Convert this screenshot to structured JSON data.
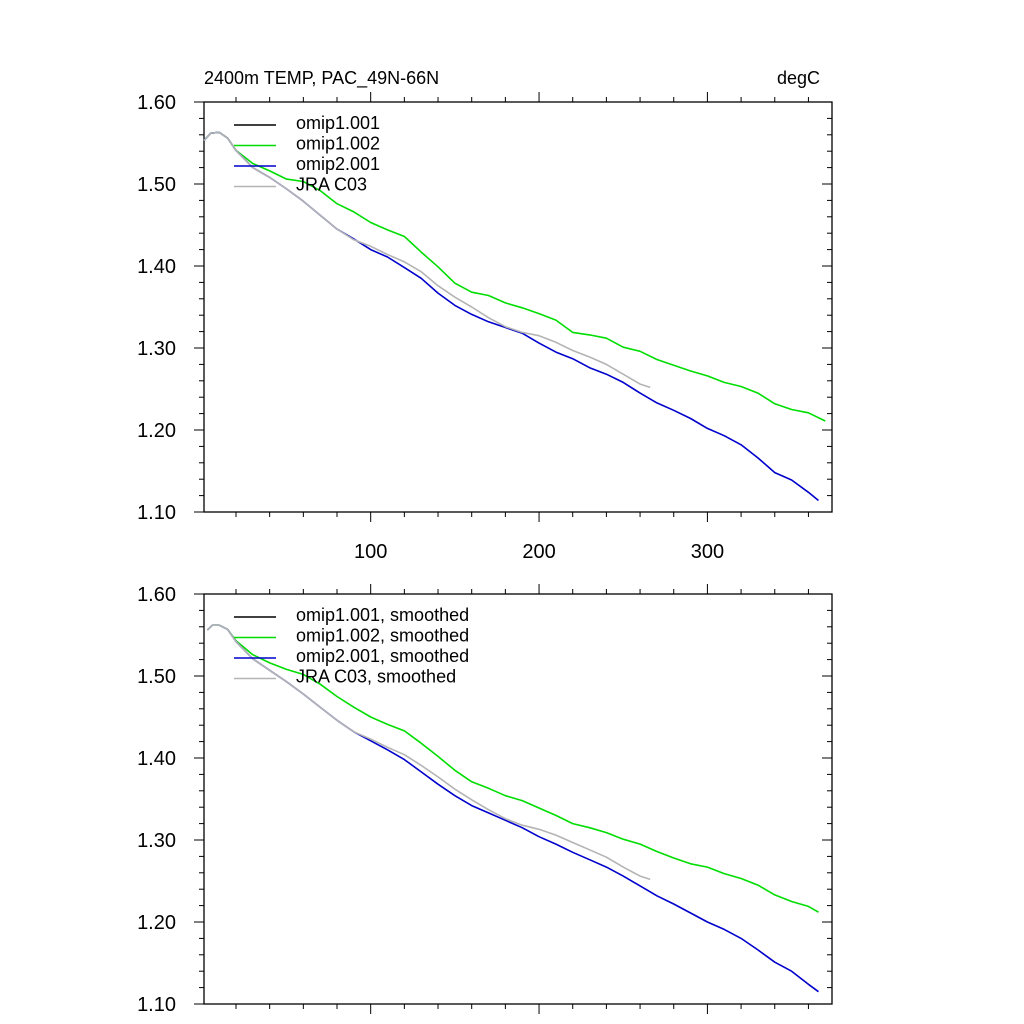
{
  "chart_data": [
    {
      "type": "line",
      "title": "2400m TEMP, PAC_49N-66N",
      "units": "degC",
      "xlim": [
        1,
        374
      ],
      "ylim": [
        1.1,
        1.6
      ],
      "xticks": [
        100,
        200,
        300
      ],
      "xtick_labels": [
        "100",
        "200",
        "300"
      ],
      "yticks": [
        1.1,
        1.2,
        1.3,
        1.4,
        1.5,
        1.6
      ],
      "ytick_labels": [
        "1.10",
        "1.20",
        "1.30",
        "1.40",
        "1.50",
        "1.60"
      ],
      "legend": "top-left",
      "series": [
        {
          "name": "omip1.001",
          "color": "#000000",
          "points": []
        },
        {
          "name": "omip1.002",
          "color": "#00dd00",
          "points": [
            [
              1,
              1.553
            ],
            [
              5,
              1.562
            ],
            [
              10,
              1.563
            ],
            [
              15,
              1.556
            ],
            [
              20,
              1.541
            ],
            [
              30,
              1.525
            ],
            [
              40,
              1.516
            ],
            [
              50,
              1.506
            ],
            [
              60,
              1.503
            ],
            [
              70,
              1.492
            ],
            [
              80,
              1.476
            ],
            [
              90,
              1.466
            ],
            [
              100,
              1.453
            ],
            [
              110,
              1.444
            ],
            [
              120,
              1.436
            ],
            [
              130,
              1.417
            ],
            [
              140,
              1.399
            ],
            [
              150,
              1.379
            ],
            [
              160,
              1.368
            ],
            [
              170,
              1.364
            ],
            [
              180,
              1.355
            ],
            [
              190,
              1.349
            ],
            [
              200,
              1.342
            ],
            [
              210,
              1.334
            ],
            [
              220,
              1.319
            ],
            [
              230,
              1.316
            ],
            [
              240,
              1.312
            ],
            [
              250,
              1.301
            ],
            [
              260,
              1.296
            ],
            [
              270,
              1.286
            ],
            [
              280,
              1.279
            ],
            [
              290,
              1.272
            ],
            [
              300,
              1.266
            ],
            [
              310,
              1.258
            ],
            [
              320,
              1.253
            ],
            [
              330,
              1.245
            ],
            [
              340,
              1.232
            ],
            [
              350,
              1.225
            ],
            [
              360,
              1.221
            ],
            [
              370,
              1.211
            ]
          ]
        },
        {
          "name": "omip2.001",
          "color": "#0000cc",
          "points": [
            [
              1,
              1.553
            ],
            [
              5,
              1.562
            ],
            [
              10,
              1.563
            ],
            [
              15,
              1.556
            ],
            [
              20,
              1.541
            ],
            [
              30,
              1.52
            ],
            [
              40,
              1.508
            ],
            [
              50,
              1.494
            ],
            [
              60,
              1.479
            ],
            [
              70,
              1.462
            ],
            [
              80,
              1.445
            ],
            [
              90,
              1.433
            ],
            [
              100,
              1.42
            ],
            [
              110,
              1.411
            ],
            [
              120,
              1.398
            ],
            [
              130,
              1.385
            ],
            [
              140,
              1.367
            ],
            [
              150,
              1.352
            ],
            [
              160,
              1.341
            ],
            [
              170,
              1.332
            ],
            [
              180,
              1.325
            ],
            [
              190,
              1.318
            ],
            [
              200,
              1.306
            ],
            [
              210,
              1.295
            ],
            [
              220,
              1.287
            ],
            [
              230,
              1.276
            ],
            [
              240,
              1.268
            ],
            [
              250,
              1.258
            ],
            [
              260,
              1.245
            ],
            [
              270,
              1.233
            ],
            [
              280,
              1.224
            ],
            [
              290,
              1.214
            ],
            [
              300,
              1.202
            ],
            [
              310,
              1.193
            ],
            [
              320,
              1.182
            ],
            [
              330,
              1.166
            ],
            [
              340,
              1.148
            ],
            [
              350,
              1.139
            ],
            [
              360,
              1.124
            ],
            [
              366,
              1.114
            ]
          ]
        },
        {
          "name": "JRA C03",
          "color": "#b4b4b4",
          "points": [
            [
              1,
              1.553
            ],
            [
              5,
              1.562
            ],
            [
              10,
              1.563
            ],
            [
              15,
              1.556
            ],
            [
              20,
              1.541
            ],
            [
              30,
              1.52
            ],
            [
              40,
              1.508
            ],
            [
              50,
              1.494
            ],
            [
              60,
              1.479
            ],
            [
              70,
              1.462
            ],
            [
              80,
              1.445
            ],
            [
              90,
              1.432
            ],
            [
              100,
              1.424
            ],
            [
              110,
              1.414
            ],
            [
              120,
              1.405
            ],
            [
              130,
              1.393
            ],
            [
              140,
              1.376
            ],
            [
              150,
              1.362
            ],
            [
              160,
              1.35
            ],
            [
              170,
              1.337
            ],
            [
              180,
              1.326
            ],
            [
              190,
              1.319
            ],
            [
              200,
              1.315
            ],
            [
              210,
              1.307
            ],
            [
              220,
              1.297
            ],
            [
              230,
              1.289
            ],
            [
              240,
              1.28
            ],
            [
              250,
              1.268
            ],
            [
              260,
              1.256
            ],
            [
              266,
              1.252
            ]
          ]
        }
      ]
    },
    {
      "type": "line",
      "xlim": [
        1,
        374
      ],
      "ylim": [
        1.1,
        1.6
      ],
      "xticks": [
        100,
        200,
        300
      ],
      "yticks": [
        1.1,
        1.2,
        1.3,
        1.4,
        1.5,
        1.6
      ],
      "ytick_labels": [
        "1.10",
        "1.20",
        "1.30",
        "1.40",
        "1.50",
        "1.60"
      ],
      "legend": "top-left",
      "series": [
        {
          "name": "omip1.001, smoothed",
          "color": "#000000",
          "points": []
        },
        {
          "name": "omip1.002, smoothed",
          "color": "#00dd00",
          "points": [
            [
              3,
              1.556
            ],
            [
              6,
              1.562
            ],
            [
              10,
              1.562
            ],
            [
              15,
              1.557
            ],
            [
              20,
              1.543
            ],
            [
              30,
              1.526
            ],
            [
              40,
              1.516
            ],
            [
              50,
              1.508
            ],
            [
              60,
              1.502
            ],
            [
              70,
              1.49
            ],
            [
              80,
              1.475
            ],
            [
              90,
              1.462
            ],
            [
              100,
              1.45
            ],
            [
              110,
              1.441
            ],
            [
              120,
              1.433
            ],
            [
              130,
              1.418
            ],
            [
              140,
              1.402
            ],
            [
              150,
              1.385
            ],
            [
              160,
              1.371
            ],
            [
              170,
              1.363
            ],
            [
              180,
              1.354
            ],
            [
              190,
              1.348
            ],
            [
              200,
              1.339
            ],
            [
              210,
              1.33
            ],
            [
              220,
              1.32
            ],
            [
              230,
              1.315
            ],
            [
              240,
              1.309
            ],
            [
              250,
              1.301
            ],
            [
              260,
              1.295
            ],
            [
              270,
              1.286
            ],
            [
              280,
              1.278
            ],
            [
              290,
              1.271
            ],
            [
              300,
              1.267
            ],
            [
              310,
              1.259
            ],
            [
              320,
              1.253
            ],
            [
              330,
              1.245
            ],
            [
              340,
              1.233
            ],
            [
              350,
              1.225
            ],
            [
              360,
              1.219
            ],
            [
              366,
              1.212
            ]
          ]
        },
        {
          "name": "omip2.001, smoothed",
          "color": "#0000cc",
          "points": [
            [
              3,
              1.556
            ],
            [
              6,
              1.562
            ],
            [
              10,
              1.562
            ],
            [
              15,
              1.557
            ],
            [
              20,
              1.542
            ],
            [
              30,
              1.521
            ],
            [
              40,
              1.507
            ],
            [
              50,
              1.493
            ],
            [
              60,
              1.478
            ],
            [
              70,
              1.462
            ],
            [
              80,
              1.446
            ],
            [
              90,
              1.432
            ],
            [
              100,
              1.421
            ],
            [
              110,
              1.41
            ],
            [
              120,
              1.398
            ],
            [
              130,
              1.383
            ],
            [
              140,
              1.368
            ],
            [
              150,
              1.354
            ],
            [
              160,
              1.342
            ],
            [
              170,
              1.333
            ],
            [
              180,
              1.324
            ],
            [
              190,
              1.315
            ],
            [
              200,
              1.304
            ],
            [
              210,
              1.295
            ],
            [
              220,
              1.285
            ],
            [
              230,
              1.276
            ],
            [
              240,
              1.267
            ],
            [
              250,
              1.256
            ],
            [
              260,
              1.244
            ],
            [
              270,
              1.232
            ],
            [
              280,
              1.222
            ],
            [
              290,
              1.211
            ],
            [
              300,
              1.2
            ],
            [
              310,
              1.191
            ],
            [
              320,
              1.18
            ],
            [
              330,
              1.166
            ],
            [
              340,
              1.151
            ],
            [
              350,
              1.14
            ],
            [
              360,
              1.124
            ],
            [
              366,
              1.115
            ]
          ]
        },
        {
          "name": "JRA C03, smoothed",
          "color": "#b4b4b4",
          "points": [
            [
              3,
              1.556
            ],
            [
              6,
              1.562
            ],
            [
              10,
              1.562
            ],
            [
              15,
              1.557
            ],
            [
              20,
              1.542
            ],
            [
              30,
              1.521
            ],
            [
              40,
              1.507
            ],
            [
              50,
              1.493
            ],
            [
              60,
              1.478
            ],
            [
              70,
              1.462
            ],
            [
              80,
              1.446
            ],
            [
              90,
              1.432
            ],
            [
              100,
              1.423
            ],
            [
              110,
              1.413
            ],
            [
              120,
              1.404
            ],
            [
              130,
              1.391
            ],
            [
              140,
              1.377
            ],
            [
              150,
              1.362
            ],
            [
              160,
              1.349
            ],
            [
              170,
              1.337
            ],
            [
              180,
              1.326
            ],
            [
              190,
              1.318
            ],
            [
              200,
              1.313
            ],
            [
              210,
              1.306
            ],
            [
              220,
              1.297
            ],
            [
              230,
              1.288
            ],
            [
              240,
              1.279
            ],
            [
              250,
              1.267
            ],
            [
              260,
              1.256
            ],
            [
              266,
              1.252
            ]
          ]
        }
      ]
    }
  ]
}
